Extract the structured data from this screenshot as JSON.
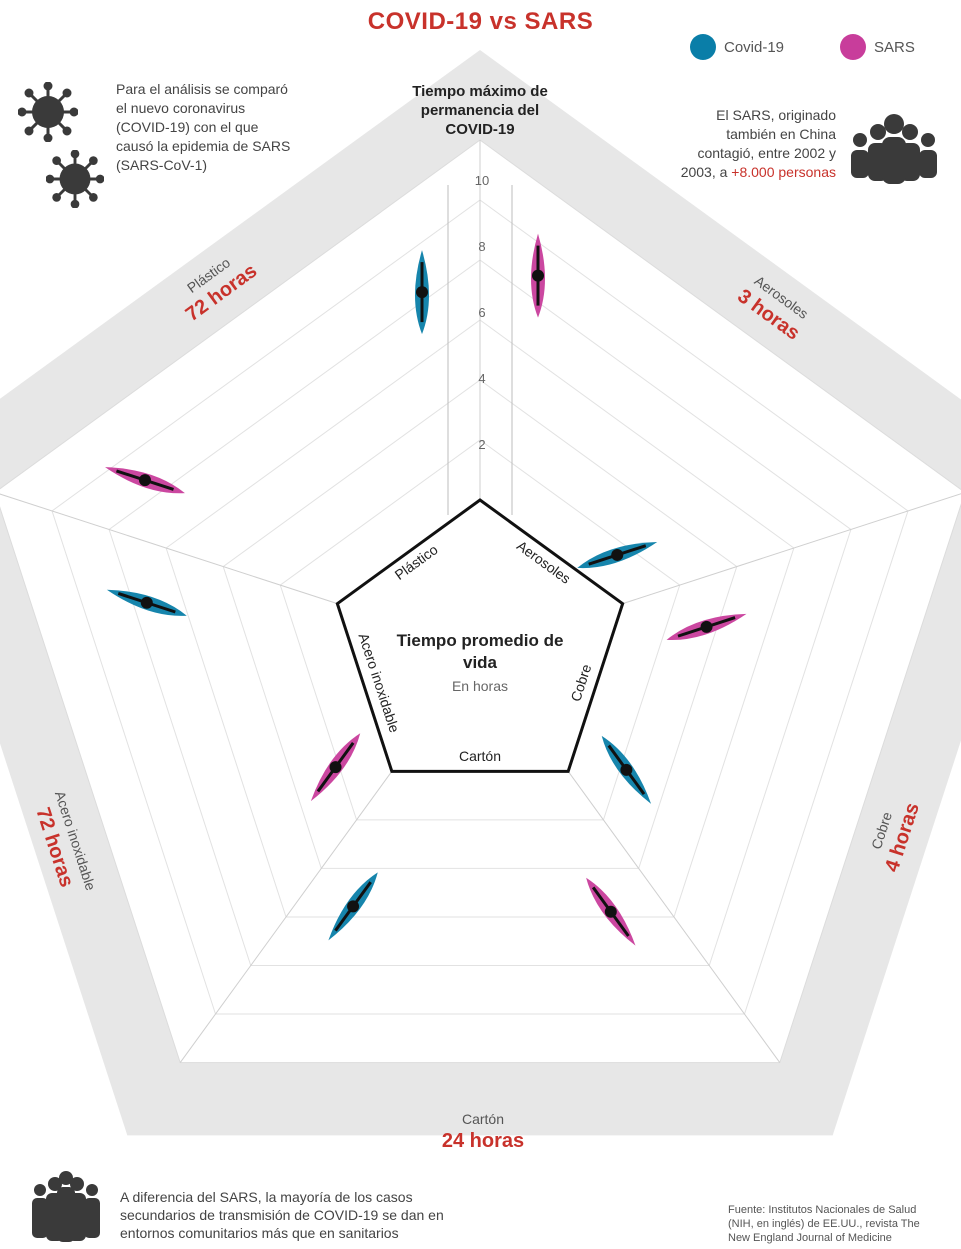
{
  "title": "COVID-19 vs SARS",
  "legend": [
    {
      "name": "Covid-19",
      "color": "#0a7ea8"
    },
    {
      "name": "SARS",
      "color": "#c83d9b"
    }
  ],
  "note_left": "Para el análisis se comparó el nuevo coronavirus (COVID-19) con el que causó la epidemia de SARS (SARS-CoV-1)",
  "note_right": {
    "text": "El SARS, originado también en China contagió, entre 2002 y 2003, a",
    "highlight": "+8.000 personas"
  },
  "axis_title": "Tiempo máximo de permanencia del COVID-19",
  "center": {
    "title": "Tiempo promedio de vida",
    "subtitle": "En horas"
  },
  "outer_labels": [
    {
      "name": "Plástico",
      "value": "72 horas"
    },
    {
      "name": "Aerosoles",
      "value": "3 horas"
    },
    {
      "name": "Cobre",
      "value": "4 horas"
    },
    {
      "name": "Cartón",
      "value": "24 horas"
    },
    {
      "name": "Acero inoxidable",
      "value": "72 horas"
    }
  ],
  "inner_labels": [
    "Plástico",
    "Aerosoles",
    "Cobre",
    "Cartón",
    "Acero inoxidable"
  ],
  "footnote": "A diferencia del SARS, la mayoría de los casos secundarios de transmisión de COVID-19 se dan en entornos comunitarios más que en sanitarios",
  "source": "Fuente: Institutos Nacionales de Salud (NIH, en inglés) de EE.UU., revista The New England Journal of Medicine",
  "icons": {
    "virus": "virus-icon",
    "people": "people-group-icon"
  },
  "chart_data": {
    "type": "radar-violin",
    "axis_ticks": [
      "0",
      "2",
      "4",
      "6",
      "8",
      "10"
    ],
    "ylim": [
      0,
      10
    ],
    "categories": [
      "Plástico",
      "Aerosoles",
      "Cobre",
      "Cartón",
      "Acero inoxidable"
    ],
    "series": [
      {
        "name": "Covid-19",
        "color": "#0a7ea8",
        "values": [
          6.3,
          0.3,
          1.0,
          4.0,
          5.5
        ]
      },
      {
        "name": "SARS",
        "color": "#c83d9b",
        "values": [
          6.8,
          2.2,
          4.2,
          0.9,
          6.7
        ]
      }
    ]
  }
}
